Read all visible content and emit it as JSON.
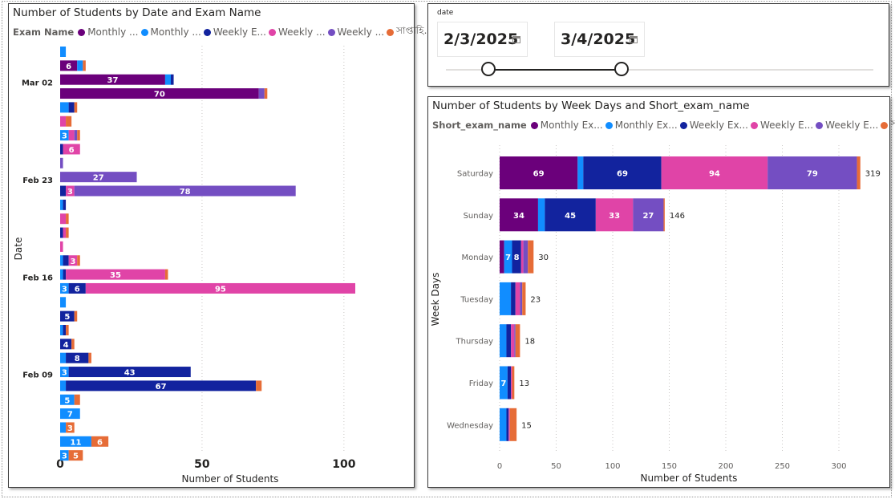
{
  "left_visual": {
    "title": "Number of Students by Date and Exam Name",
    "legend_title": "Exam Name",
    "legend": [
      {
        "label": "Monthly ...",
        "color": "#6b007b"
      },
      {
        "label": "Monthly ...",
        "color": "#118dff"
      },
      {
        "label": "Weekly E...",
        "color": "#12239e"
      },
      {
        "label": "Weekly ...",
        "color": "#e044a7"
      },
      {
        "label": "Weekly ...",
        "color": "#744ec2"
      },
      {
        "label": "সাপ্তাহি...",
        "color": "#e66c37"
      }
    ]
  },
  "right_visual": {
    "title": "Number of Students by Week Days and Short_exam_name",
    "legend_title": "Short_exam_name",
    "legend": [
      {
        "label": "Monthly Ex...",
        "color": "#6b007b"
      },
      {
        "label": "Monthly Ex...",
        "color": "#118dff"
      },
      {
        "label": "Weekly Ex...",
        "color": "#12239e"
      },
      {
        "label": "Weekly E...",
        "color": "#e044a7"
      },
      {
        "label": "Weekly E...",
        "color": "#744ec2"
      },
      {
        "label": "সাপ্তাহি...",
        "color": "#e66c37"
      }
    ]
  },
  "slicer": {
    "label": "date",
    "start_date": "2/3/2025",
    "end_date": "3/4/2025",
    "range_fraction": [
      0.1,
      0.41
    ]
  },
  "chart_data": [
    {
      "type": "bar",
      "orientation": "horizontal",
      "stacked": true,
      "title": "Number of Students by Date and Exam Name",
      "xlabel": "Number of Students",
      "ylabel": "Date",
      "xlim": [
        0,
        103
      ],
      "xticks": [
        0,
        50,
        100
      ],
      "date_tick_labels": [
        {
          "label": "Mar 02",
          "row": 3
        },
        {
          "label": "Feb 23",
          "row": 10
        },
        {
          "label": "Feb 16",
          "row": 17
        },
        {
          "label": "Feb 09",
          "row": 24
        }
      ],
      "series_colors": [
        "#6b007b",
        "#118dff",
        "#12239e",
        "#e044a7",
        "#744ec2",
        "#e66c37"
      ],
      "rows": [
        {
          "values": [
            0,
            2,
            0,
            0,
            0,
            0
          ],
          "labels": [
            null,
            null,
            null,
            null,
            null,
            null
          ]
        },
        {
          "values": [
            6,
            2,
            0,
            0,
            0,
            1
          ],
          "labels": [
            "6",
            null,
            null,
            null,
            null,
            null
          ]
        },
        {
          "values": [
            37,
            2,
            1,
            0,
            0,
            0
          ],
          "labels": [
            "37",
            null,
            null,
            null,
            null,
            null
          ]
        },
        {
          "values": [
            70,
            0,
            0,
            0,
            2,
            1
          ],
          "labels": [
            "70",
            null,
            null,
            null,
            null,
            null
          ]
        },
        {
          "values": [
            0,
            3,
            2,
            0,
            0,
            1
          ],
          "labels": [
            null,
            null,
            null,
            null,
            null,
            null
          ]
        },
        {
          "values": [
            0,
            0,
            0,
            2,
            0,
            2
          ],
          "labels": [
            null,
            null,
            null,
            null,
            null,
            null
          ]
        },
        {
          "values": [
            0,
            3,
            0,
            2,
            1,
            1
          ],
          "labels": [
            null,
            "3",
            null,
            null,
            null,
            null
          ]
        },
        {
          "values": [
            0,
            0,
            1,
            6,
            0,
            0
          ],
          "labels": [
            null,
            null,
            null,
            "6",
            null,
            null
          ]
        },
        {
          "values": [
            0,
            0,
            0,
            0,
            1,
            0
          ],
          "labels": [
            null,
            null,
            null,
            null,
            null,
            null
          ]
        },
        {
          "values": [
            0,
            0,
            0,
            0,
            27,
            0
          ],
          "labels": [
            null,
            null,
            null,
            null,
            "27",
            null
          ]
        },
        {
          "values": [
            0,
            0,
            2,
            3,
            78,
            0
          ],
          "labels": [
            null,
            null,
            null,
            "3",
            "78",
            null
          ]
        },
        {
          "values": [
            0,
            1,
            1,
            0,
            0,
            0
          ],
          "labels": [
            null,
            null,
            null,
            null,
            null,
            null
          ]
        },
        {
          "values": [
            0,
            0,
            0,
            2,
            0,
            1
          ],
          "labels": [
            null,
            null,
            null,
            null,
            null,
            null
          ]
        },
        {
          "values": [
            0,
            0,
            1,
            1,
            0,
            1
          ],
          "labels": [
            null,
            null,
            null,
            null,
            null,
            null
          ]
        },
        {
          "values": [
            0,
            0,
            0,
            1,
            0,
            0
          ],
          "labels": [
            null,
            null,
            null,
            null,
            null,
            null
          ]
        },
        {
          "values": [
            0,
            1,
            2,
            3,
            0,
            1
          ],
          "labels": [
            null,
            null,
            null,
            "3",
            null,
            null
          ]
        },
        {
          "values": [
            0,
            1,
            1,
            35,
            0,
            1
          ],
          "labels": [
            null,
            null,
            null,
            "35",
            null,
            null
          ]
        },
        {
          "values": [
            0,
            3,
            6,
            95,
            0,
            0
          ],
          "labels": [
            null,
            "3",
            "6",
            "95",
            null,
            null
          ]
        },
        {
          "values": [
            0,
            2,
            0,
            0,
            0,
            0
          ],
          "labels": [
            null,
            null,
            null,
            null,
            null,
            null
          ]
        },
        {
          "values": [
            0,
            0,
            5,
            0,
            0,
            1
          ],
          "labels": [
            null,
            null,
            "5",
            null,
            null,
            null
          ]
        },
        {
          "values": [
            0,
            1,
            1,
            0,
            0,
            1
          ],
          "labels": [
            null,
            null,
            null,
            null,
            null,
            null
          ]
        },
        {
          "values": [
            0,
            0,
            4,
            0,
            0,
            1
          ],
          "labels": [
            null,
            null,
            "4",
            null,
            null,
            null
          ]
        },
        {
          "values": [
            0,
            2,
            8,
            0,
            0,
            1
          ],
          "labels": [
            null,
            null,
            "8",
            null,
            null,
            null
          ]
        },
        {
          "values": [
            0,
            3,
            43,
            0,
            0,
            0
          ],
          "labels": [
            null,
            "3",
            "43",
            null,
            null,
            null
          ]
        },
        {
          "values": [
            0,
            2,
            67,
            0,
            0,
            2
          ],
          "labels": [
            null,
            null,
            "67",
            null,
            null,
            null
          ]
        },
        {
          "values": [
            0,
            5,
            0,
            0,
            0,
            2
          ],
          "labels": [
            null,
            "5",
            null,
            null,
            null,
            null
          ]
        },
        {
          "values": [
            0,
            7,
            0,
            0,
            0,
            0
          ],
          "labels": [
            null,
            "7",
            null,
            null,
            null,
            null
          ]
        },
        {
          "values": [
            0,
            2,
            0,
            0,
            0,
            3
          ],
          "labels": [
            null,
            null,
            null,
            null,
            null,
            "3"
          ]
        },
        {
          "values": [
            0,
            11,
            0,
            0,
            0,
            6
          ],
          "labels": [
            null,
            "11",
            null,
            null,
            null,
            "6"
          ]
        },
        {
          "values": [
            0,
            3,
            0,
            0,
            0,
            5
          ],
          "labels": [
            null,
            "3",
            null,
            null,
            null,
            "5"
          ]
        }
      ]
    },
    {
      "type": "bar",
      "orientation": "horizontal",
      "stacked": true,
      "title": "Number of Students by Week Days and Short_exam_name",
      "xlabel": "Number of Students",
      "ylabel": "Week Days",
      "xlim": [
        0,
        330
      ],
      "xticks": [
        0,
        50,
        100,
        150,
        200,
        250,
        300
      ],
      "categories": [
        "Saturday",
        "Sunday",
        "Monday",
        "Tuesday",
        "Thursday",
        "Friday",
        "Wednesday"
      ],
      "totals": [
        319,
        146,
        30,
        23,
        18,
        13,
        15
      ],
      "series": [
        {
          "name": "Monthly Ex...",
          "color": "#6b007b",
          "values": [
            69,
            34,
            4,
            0,
            0,
            0,
            0
          ],
          "labels": [
            "69",
            "34",
            null,
            null,
            null,
            null,
            null
          ]
        },
        {
          "name": "Monthly Ex...",
          "color": "#118dff",
          "values": [
            5,
            6,
            7,
            10,
            6,
            7,
            6
          ],
          "labels": [
            null,
            null,
            "7",
            null,
            null,
            "7",
            null
          ]
        },
        {
          "name": "Weekly Ex...",
          "color": "#12239e",
          "values": [
            69,
            45,
            8,
            4,
            4,
            3,
            2
          ],
          "labels": [
            "69",
            "45",
            "8",
            null,
            null,
            null,
            null
          ]
        },
        {
          "name": "Weekly E...",
          "color": "#e044a7",
          "values": [
            94,
            33,
            2,
            4,
            3,
            1,
            1
          ],
          "labels": [
            "94",
            "33",
            null,
            null,
            null,
            null,
            null
          ]
        },
        {
          "name": "Weekly E...",
          "color": "#744ec2",
          "values": [
            79,
            27,
            4,
            2,
            1,
            0,
            0
          ],
          "labels": [
            "79",
            "27",
            null,
            null,
            null,
            null,
            null
          ]
        },
        {
          "name": "সাপ্তাহি...",
          "color": "#e66c37",
          "values": [
            3,
            1,
            5,
            3,
            4,
            2,
            6
          ],
          "labels": [
            null,
            null,
            null,
            null,
            null,
            null,
            null
          ]
        }
      ]
    }
  ]
}
